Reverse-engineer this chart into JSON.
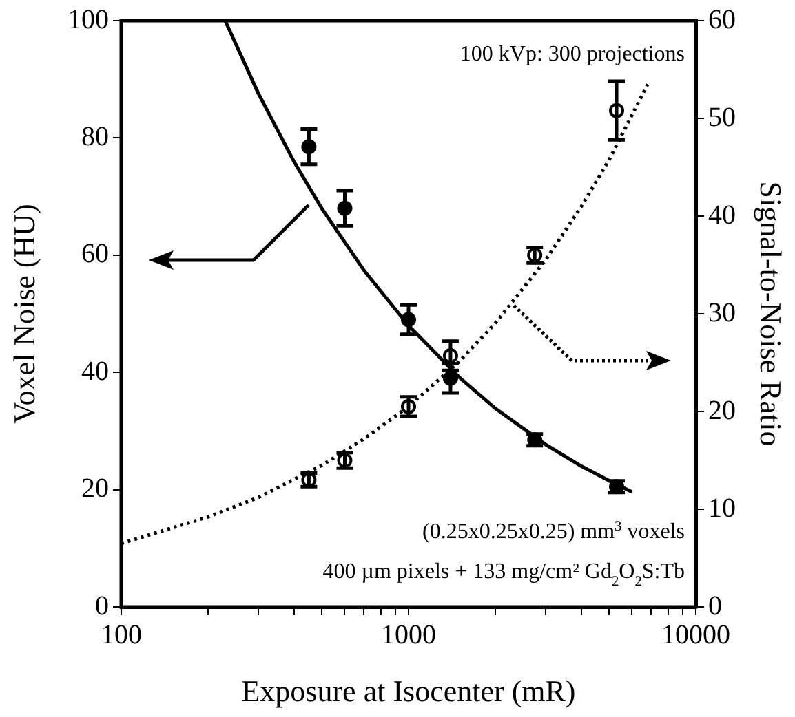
{
  "chart_data": {
    "type": "scatter",
    "xlabel": "Exposure at Isocenter (mR)",
    "ylabel": "Voxel Noise (HU)",
    "y2label": "Signal-to-Noise Ratio",
    "log": "x",
    "xlim": [
      100,
      10000
    ],
    "xticks": [
      100,
      {
        "value": 200,
        "label": null
      },
      {
        "value": 300,
        "label": null
      },
      {
        "value": 400,
        "label": null
      },
      {
        "value": 500,
        "label": null
      },
      {
        "value": 600,
        "label": null
      },
      {
        "value": 700,
        "label": null
      },
      {
        "value": 800,
        "label": null
      },
      {
        "value": 900,
        "label": null
      },
      1000,
      {
        "value": 2000,
        "label": null
      },
      {
        "value": 3000,
        "label": null
      },
      {
        "value": 4000,
        "label": null
      },
      {
        "value": 5000,
        "label": null
      },
      {
        "value": 6000,
        "label": null
      },
      {
        "value": 7000,
        "label": null
      },
      {
        "value": 8000,
        "label": null
      },
      {
        "value": 9000,
        "label": null
      },
      10000
    ],
    "ylim": [
      0,
      100
    ],
    "yticks": [
      0,
      20,
      40,
      60,
      80,
      100
    ],
    "y2lim": [
      0,
      60
    ],
    "y2ticks": [
      0,
      10,
      20,
      30,
      40,
      50,
      60
    ],
    "grid": false,
    "legend": false,
    "marker": "circle",
    "series": [
      {
        "type": "scatter",
        "axis": "y",
        "color": "#000000",
        "x": [
          450,
          600,
          1000,
          1400,
          2750,
          5300
        ],
        "values": [
          78.5,
          68,
          49,
          39,
          28.5,
          20.5
        ],
        "errors": [
          3,
          3,
          2.5,
          2.5,
          1,
          1
        ]
      },
      {
        "type": "line",
        "axis": "y",
        "color": "#000000",
        "line_style": "solid",
        "marker": "none",
        "x": [
          230,
          300,
          400,
          500,
          700,
          1000,
          1500,
          2000,
          3000,
          4000,
          5000,
          6000
        ],
        "values": [
          100,
          87.6,
          75.9,
          67.9,
          57.4,
          48,
          39.2,
          33.9,
          27.7,
          24,
          21.5,
          19.6
        ]
      },
      {
        "type": "scatter",
        "axis": "y2",
        "color": "#000000",
        "x": [
          450,
          600,
          1000,
          1400,
          2750,
          5300
        ],
        "values": [
          13,
          15,
          20.5,
          25.7,
          36,
          50.8
        ],
        "errors": [
          0.7,
          0.8,
          1,
          1.5,
          0.8,
          3
        ]
      },
      {
        "type": "line",
        "axis": "y2",
        "color": "#000000",
        "line_style": "dotted",
        "marker": "none",
        "x": [
          100,
          200,
          300,
          500,
          700,
          1000,
          1500,
          2000,
          3000,
          4000,
          5000,
          6800
        ],
        "values": [
          6.5,
          9.2,
          11.2,
          14.5,
          17.2,
          20.5,
          25.1,
          29,
          35.5,
          41,
          45.8,
          53.5
        ]
      }
    ],
    "annotations": [
      "100 kVp: 300 projections",
      "(0.25x0.25x0.25) mm$^{3}$ voxels",
      "400 µm pixels + 133 mg/cm² Gd$_{2}$O$_{2}$S:Tb"
    ]
  }
}
